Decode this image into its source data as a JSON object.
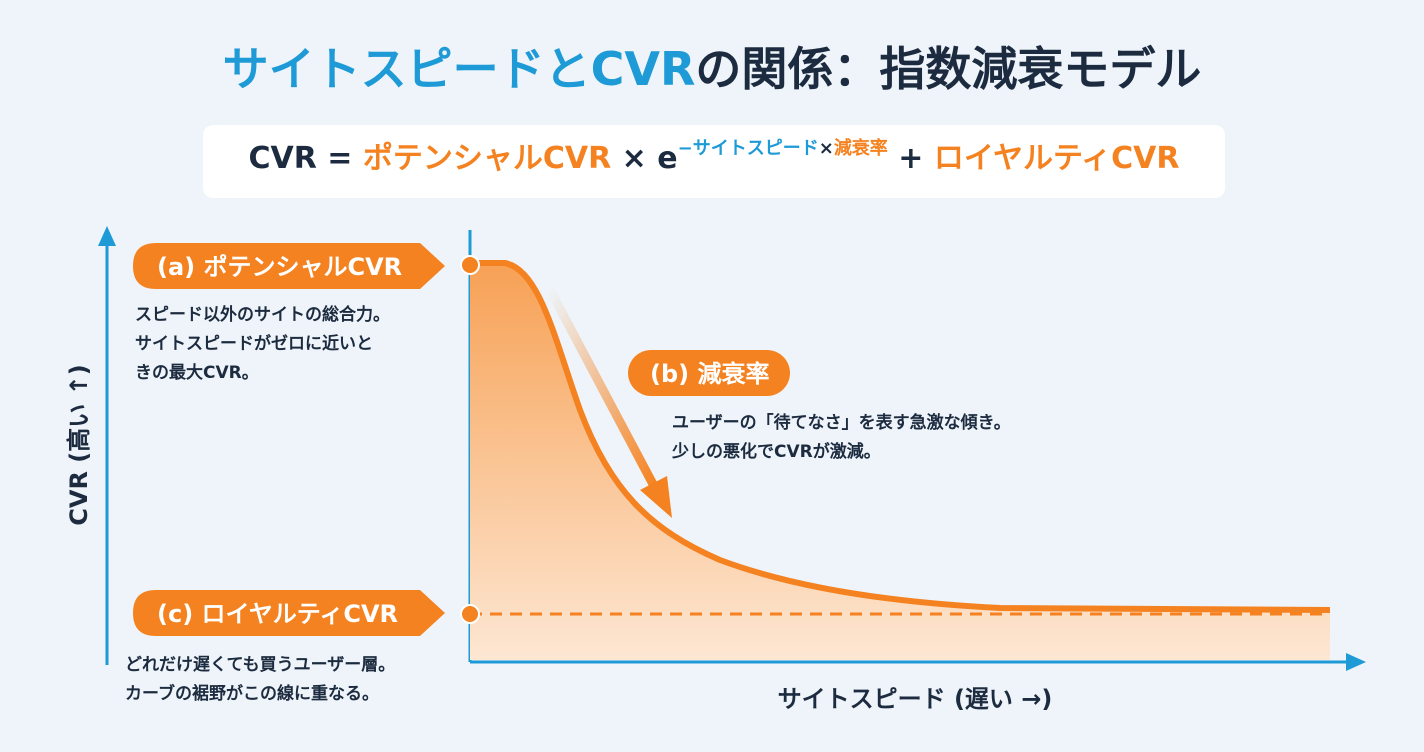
{
  "title": {
    "highlight": "サイトスピードとCVR",
    "rest": "の関係：指数減衰モデル"
  },
  "formula": {
    "lhs": "CVR",
    "equals": "=",
    "potential": "ポテンシャルCVR",
    "times": "×",
    "base": "e",
    "exponent_speed": "−サイトスピード",
    "exponent_times": "×",
    "exponent_decay": "減衰率",
    "plus": "+",
    "loyalty": "ロイヤルティCVR"
  },
  "axes": {
    "y_label": "CVR (高い ↑)",
    "x_label": "サイトスピード (遅い →)"
  },
  "callouts": [
    {
      "label": "(a) ポテンシャルCVR",
      "lines": [
        "スピード以外のサイトの総合力。",
        "サイトスピードがゼロに近いと",
        "きの最大CVR。"
      ]
    },
    {
      "label": "(b) 減衰率",
      "lines": [
        "ユーザーの「待てなさ」を表す急激な傾き。",
        "少しの悪化でCVRが激減。"
      ]
    },
    {
      "label": "(c) ロイヤルティCVR",
      "lines": [
        "どれだけ遅くても買うユーザー層。",
        "カーブの裾野がこの線に重なる。"
      ]
    }
  ]
}
